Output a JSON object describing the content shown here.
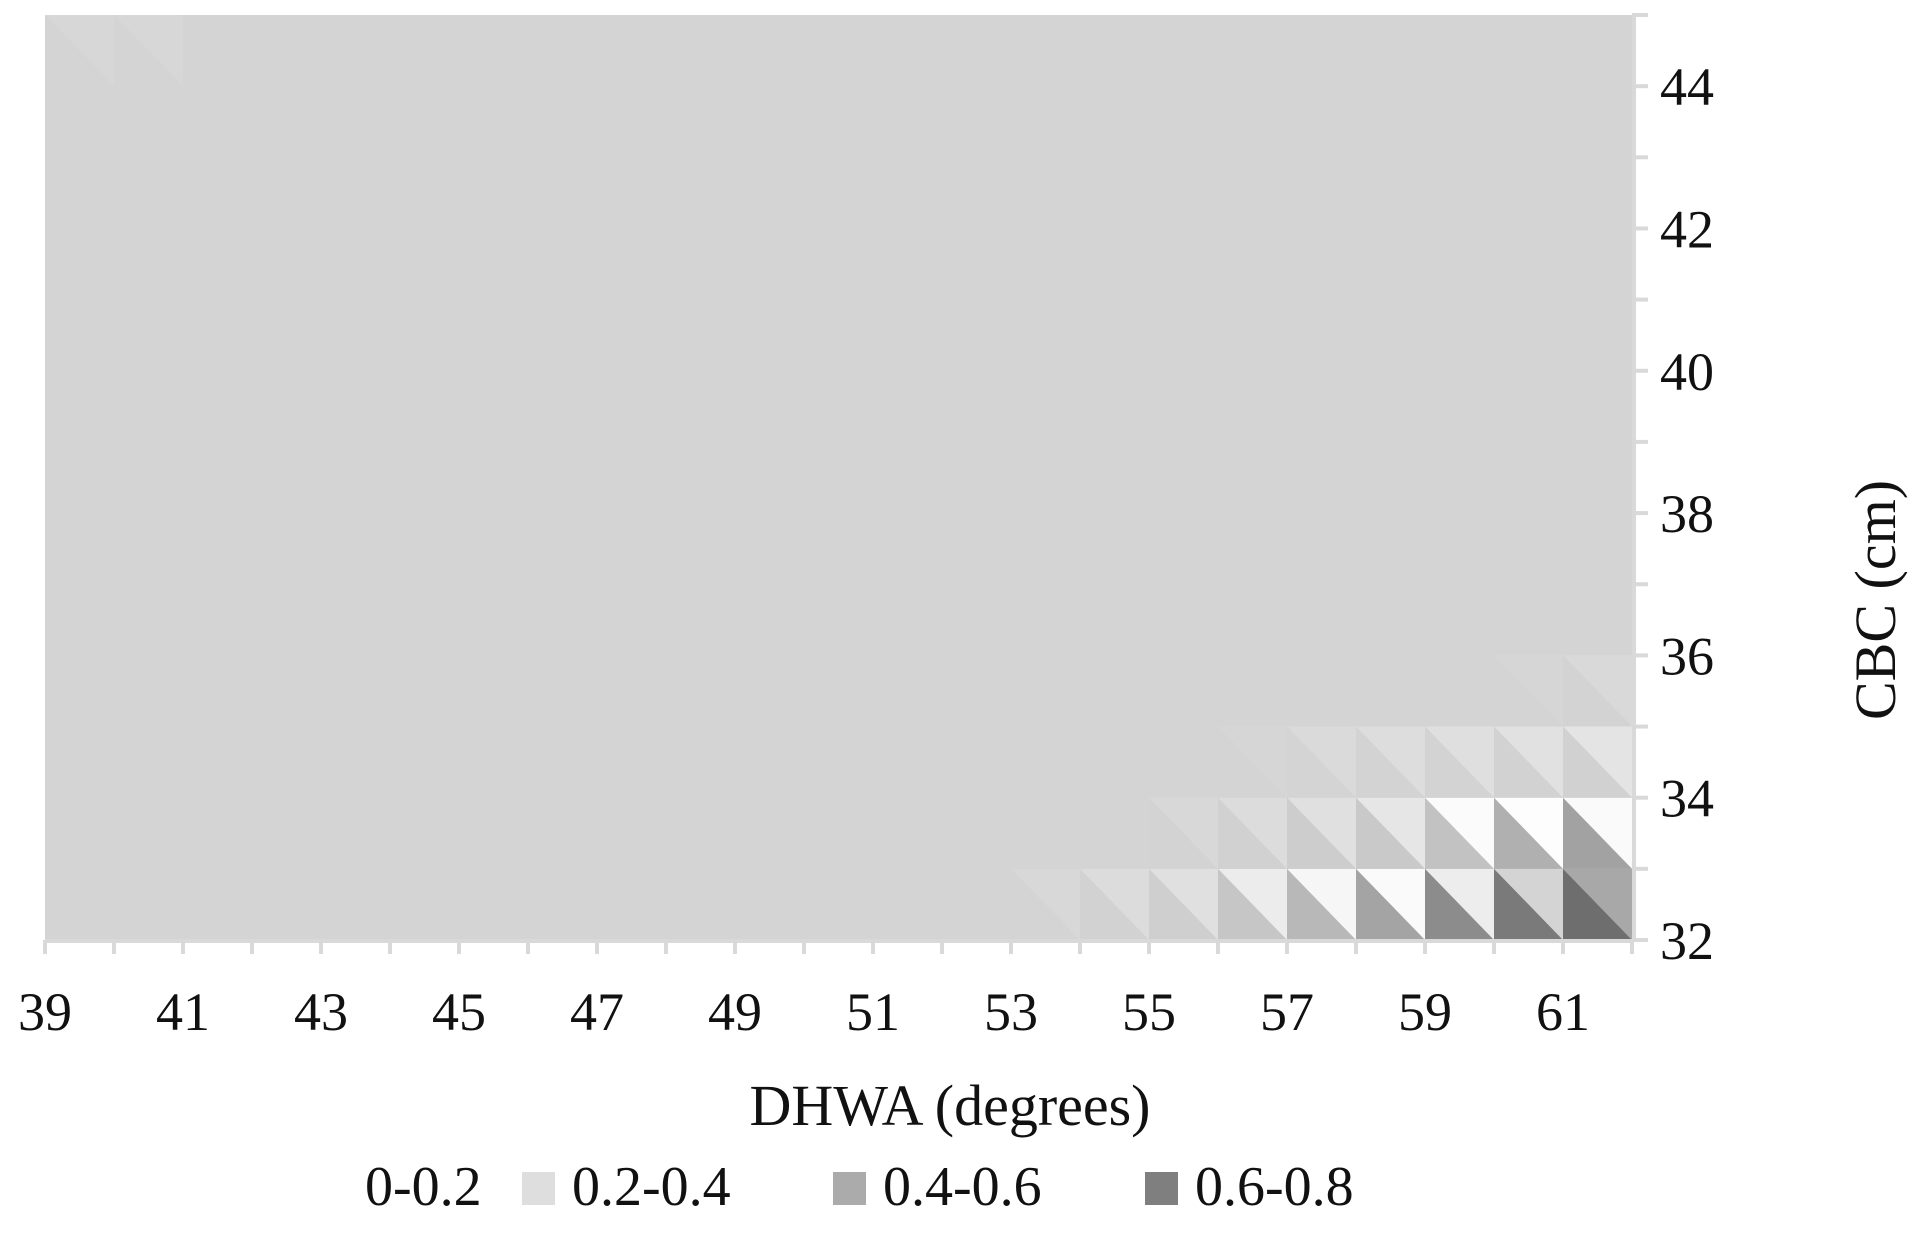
{
  "chart_data": {
    "type": "heatmap",
    "xlabel": "DHWA (degrees)",
    "ylabel": "CBC (cm)",
    "x_ticks": [
      39,
      41,
      43,
      45,
      47,
      49,
      51,
      53,
      55,
      57,
      59,
      61
    ],
    "y_ticks": [
      32,
      34,
      36,
      38,
      40,
      42,
      44
    ],
    "xlim": [
      39,
      62
    ],
    "ylim": [
      32,
      45
    ],
    "legend_position": "bottom",
    "legend": [
      {
        "label": "0-0.2",
        "color": "#d4d4d4"
      },
      {
        "label": "0.2-0.4",
        "color": "#dedede"
      },
      {
        "label": "0.4-0.6",
        "color": "#ababab"
      },
      {
        "label": "0.6-0.8",
        "color": "#7f7f7f"
      }
    ],
    "background_value_band": "0-0.2",
    "background_color": "#d4d4d4",
    "cells": [
      {
        "x": 53,
        "y": 32,
        "upper": "#d8d8d8",
        "lower": "#d4d4d4"
      },
      {
        "x": 54,
        "y": 32,
        "upper": "#dcdcdc",
        "lower": "#d2d2d2"
      },
      {
        "x": 55,
        "y": 32,
        "upper": "#e0e0e0",
        "lower": "#cfcfcf"
      },
      {
        "x": 56,
        "y": 32,
        "upper": "#ececec",
        "lower": "#c6c6c6"
      },
      {
        "x": 57,
        "y": 32,
        "upper": "#f6f6f6",
        "lower": "#b8b8b8"
      },
      {
        "x": 58,
        "y": 32,
        "upper": "#fafafa",
        "lower": "#a4a4a4"
      },
      {
        "x": 59,
        "y": 32,
        "upper": "#ededed",
        "lower": "#8c8c8c"
      },
      {
        "x": 60,
        "y": 32,
        "upper": "#d4d4d4",
        "lower": "#7a7a7a"
      },
      {
        "x": 61,
        "y": 32,
        "upper": "#a8a8a8",
        "lower": "#6e6e6e"
      },
      {
        "x": 55,
        "y": 33,
        "upper": "#d8d8d8",
        "lower": "#d3d3d3"
      },
      {
        "x": 56,
        "y": 33,
        "upper": "#dcdcdc",
        "lower": "#d1d1d1"
      },
      {
        "x": 57,
        "y": 33,
        "upper": "#e0e0e0",
        "lower": "#cdcdcd"
      },
      {
        "x": 58,
        "y": 33,
        "upper": "#e6e6e6",
        "lower": "#c9c9c9"
      },
      {
        "x": 59,
        "y": 33,
        "upper": "#fbfbfb",
        "lower": "#c2c2c2"
      },
      {
        "x": 60,
        "y": 33,
        "upper": "#fdfdfd",
        "lower": "#b0b0b0"
      },
      {
        "x": 61,
        "y": 33,
        "upper": "#fafafa",
        "lower": "#a2a2a2"
      },
      {
        "x": 56,
        "y": 34,
        "upper": "#d6d6d6",
        "lower": "#d4d4d4"
      },
      {
        "x": 57,
        "y": 34,
        "upper": "#dadada",
        "lower": "#d4d4d4"
      },
      {
        "x": 58,
        "y": 34,
        "upper": "#dddddd",
        "lower": "#d3d3d3"
      },
      {
        "x": 59,
        "y": 34,
        "upper": "#dfdfdf",
        "lower": "#d3d3d3"
      },
      {
        "x": 60,
        "y": 34,
        "upper": "#e1e1e1",
        "lower": "#d2d2d2"
      },
      {
        "x": 61,
        "y": 34,
        "upper": "#e4e4e4",
        "lower": "#d1d1d1"
      },
      {
        "x": 60,
        "y": 35,
        "upper": "#d6d6d6",
        "lower": "#d4d4d4"
      },
      {
        "x": 61,
        "y": 35,
        "upper": "#d9d9d9",
        "lower": "#d3d3d3"
      },
      {
        "x": 39,
        "y": 44,
        "upper": "#d7d7d7",
        "lower": "#d4d4d4"
      },
      {
        "x": 40,
        "y": 44,
        "upper": "#d7d7d7",
        "lower": "#d4d4d4"
      }
    ]
  }
}
